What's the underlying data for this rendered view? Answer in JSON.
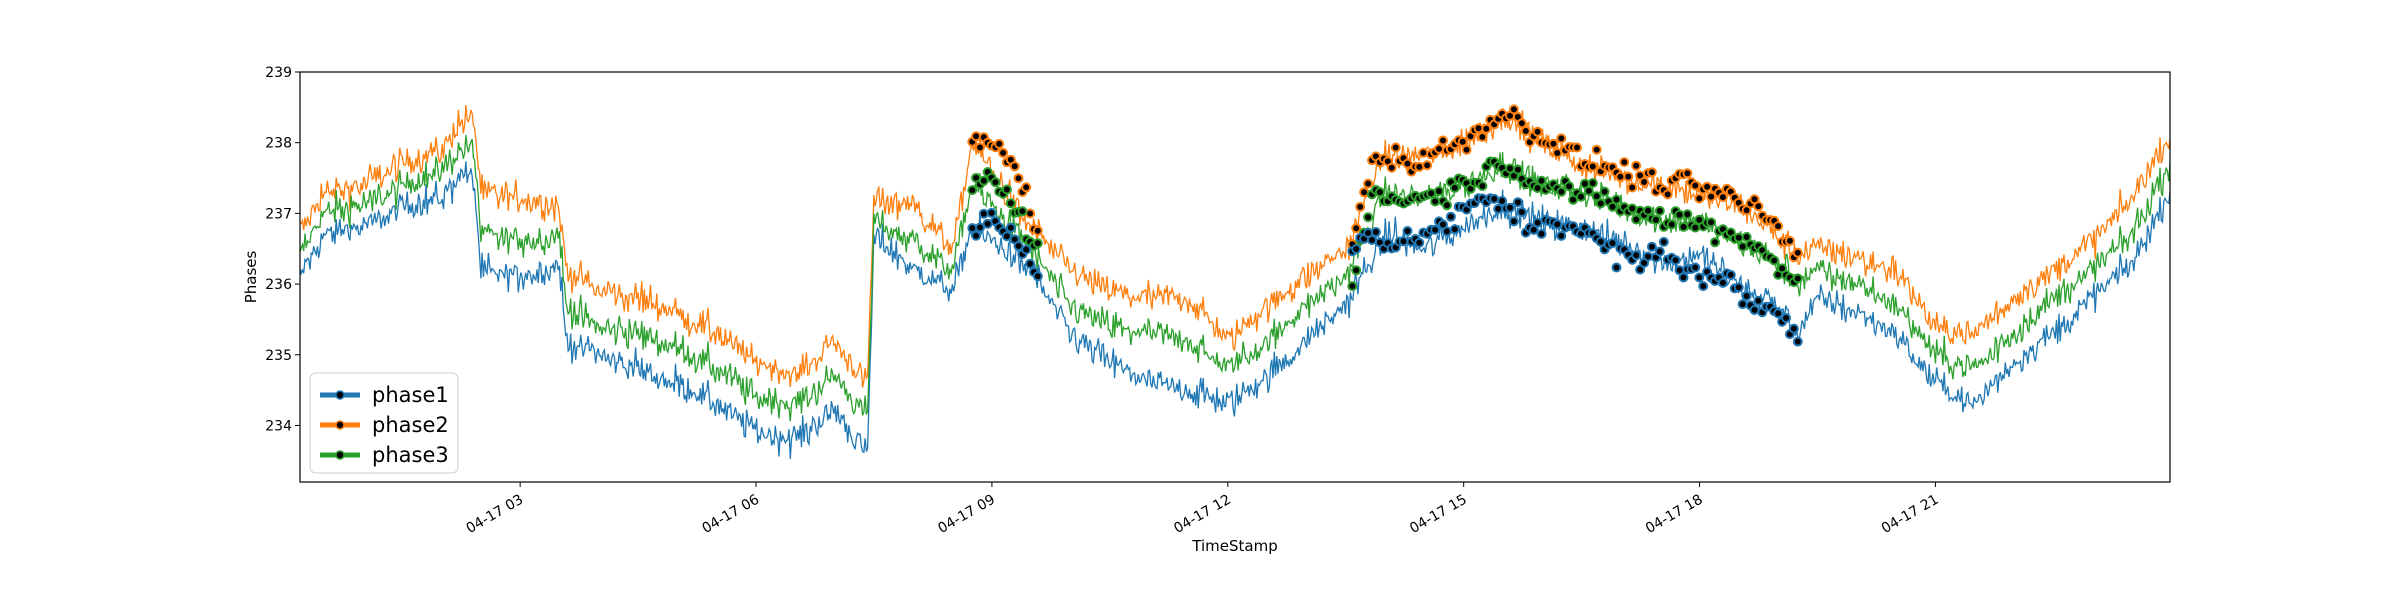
{
  "chart_data": {
    "type": "line",
    "title": "",
    "xlabel": "TimeStamp",
    "ylabel": "Phases",
    "xlim": [
      "04-17 00:12",
      "04-17 23:59"
    ],
    "ylim": [
      233.2,
      239.0
    ],
    "yticks": [
      234,
      235,
      236,
      237,
      238,
      239
    ],
    "xticks": [
      "04-17 03",
      "04-17 06",
      "04-17 09",
      "04-17 12",
      "04-17 15",
      "04-17 18",
      "04-17 21"
    ],
    "grid": false,
    "legend_position": "lower-left",
    "marker_intervals": [
      [
        "04-17 08:45",
        "04-17 09:35"
      ],
      [
        "04-17 13:35",
        "04-17 19:15"
      ]
    ],
    "x": [
      "04-17 00:12",
      "04-17 00:30",
      "04-17 01:00",
      "04-17 01:30",
      "04-17 02:00",
      "04-17 02:15",
      "04-17 02:25",
      "04-17 02:30",
      "04-17 03:00",
      "04-17 03:30",
      "04-17 03:35",
      "04-17 04:00",
      "04-17 04:30",
      "04-17 05:00",
      "04-17 05:30",
      "04-17 06:00",
      "04-17 06:30",
      "04-17 07:00",
      "04-17 07:25",
      "04-17 07:30",
      "04-17 08:00",
      "04-17 08:30",
      "04-17 08:45",
      "04-17 09:00",
      "04-17 09:30",
      "04-17 10:00",
      "04-17 10:30",
      "04-17 11:00",
      "04-17 11:30",
      "04-17 12:00",
      "04-17 12:30",
      "04-17 13:00",
      "04-17 13:30",
      "04-17 14:00",
      "04-17 14:30",
      "04-17 15:00",
      "04-17 15:30",
      "04-17 16:00",
      "04-17 16:30",
      "04-17 17:00",
      "04-17 17:30",
      "04-17 18:00",
      "04-17 18:30",
      "04-17 19:00",
      "04-17 19:15",
      "04-17 19:30",
      "04-17 20:00",
      "04-17 20:30",
      "04-17 21:00",
      "04-17 21:30",
      "04-17 22:00",
      "04-17 22:30",
      "04-17 23:00",
      "04-17 23:30",
      "04-17 23:59"
    ],
    "series": [
      {
        "name": "phase1",
        "color": "#1f77b4",
        "values": [
          236.1,
          236.7,
          236.8,
          237.1,
          237.2,
          237.6,
          237.5,
          236.2,
          236.1,
          236.3,
          235.2,
          235.0,
          234.8,
          234.6,
          234.3,
          233.9,
          233.8,
          234.2,
          233.6,
          236.7,
          236.2,
          235.9,
          236.8,
          236.6,
          236.2,
          235.3,
          234.9,
          234.6,
          234.5,
          234.3,
          234.7,
          235.2,
          235.7,
          236.7,
          236.5,
          236.8,
          237.1,
          236.9,
          236.8,
          236.6,
          236.3,
          236.4,
          236.0,
          235.7,
          235.3,
          235.8,
          235.6,
          235.3,
          234.6,
          234.3,
          234.9,
          235.3,
          235.8,
          236.3,
          237.3
        ],
        "marker_values": [
          [
            236.8,
            236.9,
            236.6,
            236.2
          ],
          [
            236.6,
            236.7,
            236.5,
            236.7,
            236.8,
            237.0,
            237.2,
            237.1,
            236.8,
            236.9,
            236.8,
            236.6,
            236.4,
            236.3,
            236.5,
            236.2,
            236.1,
            236.0,
            235.7,
            235.6,
            235.3
          ]
        ]
      },
      {
        "name": "phase2",
        "color": "#ff7f0e",
        "values": [
          236.7,
          237.3,
          237.4,
          237.7,
          237.9,
          238.3,
          238.3,
          237.3,
          237.2,
          237.1,
          236.2,
          235.9,
          235.8,
          235.6,
          235.3,
          234.9,
          234.7,
          235.2,
          234.6,
          237.2,
          237.1,
          236.5,
          238.0,
          237.6,
          236.8,
          236.2,
          235.9,
          235.8,
          235.8,
          235.2,
          235.7,
          236.1,
          236.5,
          237.8,
          237.8,
          238.0,
          238.4,
          238.0,
          237.7,
          237.5,
          237.4,
          237.3,
          237.1,
          236.7,
          236.4,
          236.5,
          236.4,
          236.2,
          235.4,
          235.3,
          235.8,
          236.2,
          236.6,
          237.2,
          238.1
        ],
        "marker_values": [
          [
            238.0,
            238.0,
            237.6,
            236.8
          ],
          [
            236.6,
            237.8,
            237.8,
            237.7,
            237.9,
            238.0,
            238.3,
            238.4,
            238.2,
            238.0,
            237.8,
            237.7,
            237.6,
            237.5,
            237.4,
            237.4,
            237.3,
            237.2,
            237.1,
            236.8,
            236.4
          ]
        ]
      },
      {
        "name": "phase3",
        "color": "#2ca02c",
        "values": [
          236.4,
          237.0,
          237.1,
          237.4,
          237.6,
          237.9,
          237.9,
          236.7,
          236.6,
          236.7,
          235.7,
          235.4,
          235.3,
          235.1,
          234.8,
          234.4,
          234.3,
          234.7,
          234.1,
          236.9,
          236.6,
          236.2,
          237.4,
          237.1,
          236.5,
          235.7,
          235.4,
          235.3,
          235.2,
          234.8,
          235.2,
          235.7,
          236.1,
          237.3,
          237.2,
          237.4,
          237.7,
          237.4,
          237.3,
          237.1,
          236.9,
          236.9,
          236.6,
          236.3,
          236.0,
          236.2,
          236.0,
          235.7,
          235.0,
          234.8,
          235.3,
          235.8,
          236.2,
          236.7,
          237.7
        ],
        "marker_values": [
          [
            237.4,
            237.5,
            237.1,
            236.5
          ],
          [
            236.1,
            237.3,
            237.2,
            237.2,
            237.3,
            237.4,
            237.6,
            237.7,
            237.5,
            237.4,
            237.3,
            237.2,
            237.1,
            237.0,
            236.9,
            236.9,
            236.8,
            236.7,
            236.6,
            236.3,
            236.0
          ]
        ]
      }
    ]
  }
}
